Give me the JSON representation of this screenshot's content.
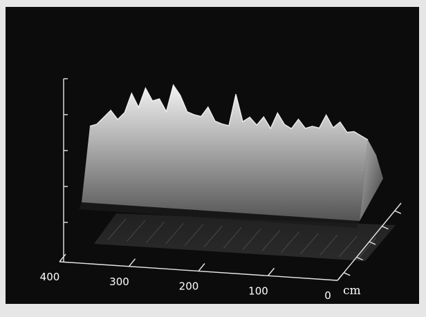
{
  "chart_data": {
    "type": "surface",
    "title": "",
    "x_axis": {
      "unit": "cm",
      "tick_labels": [
        "400",
        "300",
        "200",
        "100",
        "0"
      ],
      "ticks": [
        400,
        300,
        200,
        100,
        0
      ],
      "range": [
        0,
        400
      ]
    },
    "y_axis": {
      "tick_count": 5,
      "tick_labels": []
    },
    "depth_axis": {
      "tick_count": 5,
      "tick_labels": []
    },
    "ridge_profile": {
      "x": [
        400,
        390,
        380,
        370,
        360,
        350,
        340,
        330,
        320,
        310,
        300,
        290,
        280,
        270,
        260,
        250,
        240,
        230,
        220,
        210,
        200,
        190,
        180,
        170,
        160,
        150,
        140,
        130,
        120,
        110,
        100,
        90,
        80,
        70,
        60,
        50,
        40,
        30,
        20,
        10,
        0
      ],
      "height": [
        0.62,
        0.64,
        0.7,
        0.76,
        0.69,
        0.75,
        0.91,
        0.8,
        0.96,
        0.86,
        0.88,
        0.78,
        1.0,
        0.92,
        0.79,
        0.77,
        0.76,
        0.84,
        0.73,
        0.71,
        0.7,
        0.96,
        0.74,
        0.78,
        0.72,
        0.79,
        0.7,
        0.83,
        0.74,
        0.71,
        0.79,
        0.72,
        0.74,
        0.73,
        0.84,
        0.74,
        0.79,
        0.71,
        0.72,
        0.69,
        0.66
      ]
    },
    "colors": {
      "background": "#0c0c0c",
      "frame": "#e6e6e6",
      "axis": "#e8e8e8",
      "surface_top": "#f2f2f2",
      "surface_bottom": "#545454"
    }
  }
}
